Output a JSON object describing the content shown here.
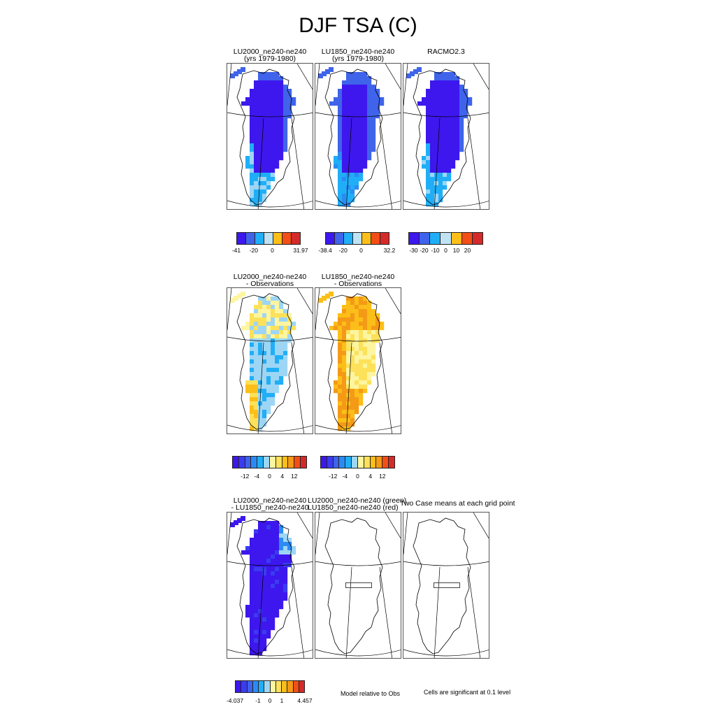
{
  "title": "DJF TSA (C)",
  "rows": [
    {
      "panels": [
        {
          "t1": "LU2000_ne240-ne240",
          "t2": "(yrs 1979-1980)",
          "scheme": "abs_a"
        },
        {
          "t1": "LU1850_ne240-ne240",
          "t2": "(yrs 1979-1980)",
          "scheme": "abs_b"
        },
        {
          "t1": "",
          "t2": "RACMO2.3",
          "scheme": "abs_a"
        }
      ],
      "colorbars": [
        {
          "ticks": [
            "-41",
            "-20",
            "0",
            "31.97"
          ]
        },
        {
          "ticks": [
            "-38.4",
            "-20",
            "0",
            "32.2"
          ]
        },
        {
          "ticks": [
            "-30",
            "-20",
            "-10",
            "0",
            "10",
            "20"
          ]
        }
      ]
    },
    {
      "panels": [
        {
          "t1": "LU2000_ne240-ne240",
          "t2": "- Observations",
          "scheme": "bias_a"
        },
        {
          "t1": "LU1850_ne240-ne240",
          "t2": "- Observations",
          "scheme": "bias_b"
        }
      ],
      "colorbars": [
        {
          "ticks": [
            "-12",
            "-4",
            "0",
            "4",
            "12"
          ]
        },
        {
          "ticks": [
            "-12",
            "-4",
            "0",
            "4",
            "12"
          ]
        }
      ]
    },
    {
      "panels": [
        {
          "t1": "LU2000_ne240-ne240",
          "t2": "- LU1850_ne240-ne240",
          "scheme": "diff"
        },
        {
          "t1": "LU2000_ne240-ne240 (green)",
          "t2": "LU1850_ne240-ne240 (red)",
          "scheme": "empty"
        },
        {
          "t1": "",
          "t2": "",
          "scheme": "empty"
        }
      ],
      "overlay_label": "Two Case means at each grid point",
      "colorbars": [
        {
          "ticks": [
            "-4.037",
            "-1",
            "0",
            "1",
            "4.457"
          ]
        }
      ],
      "notes": [
        "Model relative to Obs",
        "Cells are significant at 0.1 level"
      ]
    }
  ],
  "colors": {
    "abs": [
      "#3d17ee",
      "#3f63ea",
      "#20aef7",
      "#bfe3f3",
      "#fcbe18",
      "#f24e16",
      "#d52a2a"
    ],
    "bias": [
      "#3d17ee",
      "#3a3cf0",
      "#3f63ea",
      "#2b8bf4",
      "#20aef7",
      "#9dd6f5",
      "#fdf5a0",
      "#fde15a",
      "#fcbe18",
      "#f49a16",
      "#f24e16",
      "#d52a2a"
    ],
    "diff": [
      "#3d17ee",
      "#3a3cf0",
      "#3f63ea",
      "#2b8bf4",
      "#20aef7",
      "#9dd6f5",
      "#fdf5a0",
      "#fde15a",
      "#fcbe18",
      "#f49a16",
      "#f24e16",
      "#d52a2a"
    ]
  }
}
